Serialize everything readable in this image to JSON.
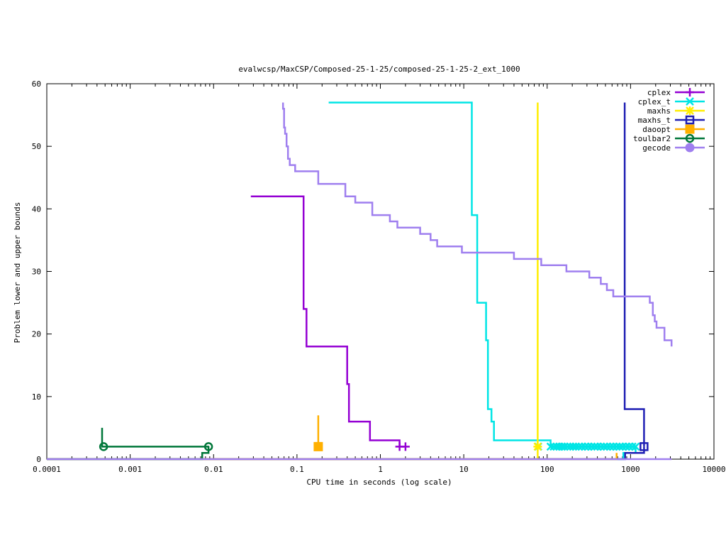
{
  "chart_data": {
    "type": "line",
    "title": "evalwcsp/MaxCSP/Composed-25-1-25/composed-25-1-25-2_ext_1000",
    "xlabel": "CPU time in seconds (log scale)",
    "ylabel": "Problem lower and upper bounds",
    "xscale": "log",
    "xlim": [
      0.0001,
      10000
    ],
    "ylim": [
      0,
      60
    ],
    "x_ticks": [
      0.0001,
      0.001,
      0.01,
      0.1,
      1,
      10,
      100,
      1000,
      10000
    ],
    "x_tick_labels": [
      "0.0001",
      "0.001",
      "0.01",
      "0.1",
      "1",
      "10",
      "100",
      "1000",
      "10000"
    ],
    "y_ticks": [
      0,
      10,
      20,
      30,
      40,
      50,
      60
    ],
    "y_tick_labels": [
      "0",
      "10",
      "20",
      "30",
      "40",
      "50",
      "60"
    ],
    "legend_position": "top-right",
    "series": [
      {
        "name": "cplex",
        "color": "#9400d3",
        "marker": "plus",
        "upper": [
          [
            0.028,
            42
          ],
          [
            0.12,
            42
          ],
          [
            0.12,
            24
          ],
          [
            0.13,
            24
          ],
          [
            0.13,
            18
          ],
          [
            0.4,
            18
          ],
          [
            0.4,
            12
          ],
          [
            0.42,
            12
          ],
          [
            0.42,
            6
          ],
          [
            0.75,
            6
          ],
          [
            0.75,
            3
          ],
          [
            1.7,
            3
          ],
          [
            1.7,
            2
          ],
          [
            2.0,
            2
          ]
        ],
        "lower": [
          [
            0.0001,
            0
          ],
          [
            2.0,
            0
          ]
        ],
        "end_markers": [
          [
            1.7,
            2
          ],
          [
            2.0,
            2
          ]
        ]
      },
      {
        "name": "cplex_t",
        "color": "#00e5e5",
        "marker": "cross",
        "upper": [
          [
            0.24,
            57
          ],
          [
            12.5,
            57
          ],
          [
            12.5,
            39
          ],
          [
            14.5,
            39
          ],
          [
            14.5,
            25
          ],
          [
            18.5,
            25
          ],
          [
            18.5,
            19
          ],
          [
            19.5,
            19
          ],
          [
            19.5,
            8
          ],
          [
            21.5,
            8
          ],
          [
            21.5,
            6
          ],
          [
            23,
            6
          ],
          [
            23,
            3
          ],
          [
            110,
            3
          ],
          [
            110,
            2
          ],
          [
            1150,
            2
          ]
        ],
        "lower": [
          [
            0.0001,
            0
          ],
          [
            820,
            0
          ],
          [
            820,
            1
          ],
          [
            1150,
            1
          ],
          [
            1150,
            2
          ]
        ],
        "end_markers": [
          [
            78,
            2
          ],
          [
            110,
            2
          ],
          [
            120,
            2
          ],
          [
            130,
            2
          ],
          [
            140,
            2
          ],
          [
            150,
            2
          ],
          [
            160,
            2
          ],
          [
            175,
            2
          ],
          [
            190,
            2
          ],
          [
            205,
            2
          ],
          [
            220,
            2
          ],
          [
            240,
            2
          ],
          [
            260,
            2
          ],
          [
            285,
            2
          ],
          [
            310,
            2
          ],
          [
            340,
            2
          ],
          [
            370,
            2
          ],
          [
            400,
            2
          ],
          [
            440,
            2
          ],
          [
            480,
            2
          ],
          [
            520,
            2
          ],
          [
            570,
            2
          ],
          [
            620,
            2
          ],
          [
            680,
            2
          ],
          [
            740,
            2
          ],
          [
            800,
            2
          ],
          [
            880,
            2
          ],
          [
            960,
            2
          ],
          [
            1050,
            2
          ],
          [
            1150,
            2
          ]
        ]
      },
      {
        "name": "maxhs",
        "color": "#ffee00",
        "marker": "star",
        "upper": [
          [
            77,
            57
          ],
          [
            77,
            2
          ]
        ],
        "lower": [
          [
            0.0001,
            0
          ],
          [
            77,
            0
          ],
          [
            77,
            2
          ]
        ],
        "end_markers": [
          [
            77,
            2
          ]
        ]
      },
      {
        "name": "maxhs_t",
        "color": "#1f1fb4",
        "marker": "square",
        "upper": [
          [
            850,
            57
          ],
          [
            850,
            8
          ],
          [
            1450,
            8
          ],
          [
            1450,
            2
          ]
        ],
        "lower": [
          [
            0.0001,
            0
          ],
          [
            860,
            0
          ],
          [
            860,
            1
          ],
          [
            1450,
            1
          ],
          [
            1450,
            2
          ]
        ],
        "end_markers": [
          [
            1450,
            2
          ]
        ]
      },
      {
        "name": "daoopt",
        "color": "#ffb000",
        "marker": "filled-square",
        "upper": [
          [
            0.18,
            7
          ],
          [
            0.18,
            2
          ]
        ],
        "lower": [
          [
            0.0001,
            0
          ],
          [
            680,
            0
          ],
          [
            680,
            1
          ]
        ],
        "end_markers": [
          [
            0.18,
            2
          ]
        ]
      },
      {
        "name": "toulbar2",
        "color": "#00773a",
        "marker": "circle",
        "upper": [
          [
            0.00046,
            5
          ],
          [
            0.00046,
            2
          ],
          [
            0.0087,
            2
          ]
        ],
        "lower": [
          [
            0.0001,
            0
          ],
          [
            0.0073,
            0
          ],
          [
            0.0073,
            1
          ],
          [
            0.0087,
            1
          ],
          [
            0.0087,
            2
          ]
        ],
        "end_markers": [
          [
            0.00048,
            2
          ],
          [
            0.0087,
            2
          ]
        ]
      },
      {
        "name": "gecode",
        "color": "#9f7fef",
        "marker": "filled-circle",
        "upper": [
          [
            0.068,
            57
          ],
          [
            0.068,
            56
          ],
          [
            0.07,
            56
          ],
          [
            0.07,
            53
          ],
          [
            0.072,
            53
          ],
          [
            0.072,
            52
          ],
          [
            0.075,
            52
          ],
          [
            0.075,
            50
          ],
          [
            0.078,
            50
          ],
          [
            0.078,
            48
          ],
          [
            0.082,
            48
          ],
          [
            0.082,
            47
          ],
          [
            0.095,
            47
          ],
          [
            0.095,
            46
          ],
          [
            0.18,
            46
          ],
          [
            0.18,
            44
          ],
          [
            0.38,
            44
          ],
          [
            0.38,
            42
          ],
          [
            0.5,
            42
          ],
          [
            0.5,
            41
          ],
          [
            0.8,
            41
          ],
          [
            0.8,
            39
          ],
          [
            1.3,
            39
          ],
          [
            1.3,
            38
          ],
          [
            1.6,
            38
          ],
          [
            1.6,
            37
          ],
          [
            3.0,
            37
          ],
          [
            3.0,
            36
          ],
          [
            4.0,
            36
          ],
          [
            4.0,
            35
          ],
          [
            4.8,
            35
          ],
          [
            4.8,
            34
          ],
          [
            9.5,
            34
          ],
          [
            9.5,
            33
          ],
          [
            40,
            33
          ],
          [
            40,
            32
          ],
          [
            85,
            32
          ],
          [
            85,
            31
          ],
          [
            170,
            31
          ],
          [
            170,
            30
          ],
          [
            320,
            30
          ],
          [
            320,
            29
          ],
          [
            440,
            29
          ],
          [
            440,
            28
          ],
          [
            520,
            28
          ],
          [
            520,
            27
          ],
          [
            620,
            27
          ],
          [
            620,
            26
          ],
          [
            1700,
            26
          ],
          [
            1700,
            25
          ],
          [
            1850,
            25
          ],
          [
            1850,
            23
          ],
          [
            1950,
            23
          ],
          [
            1950,
            22
          ],
          [
            2050,
            22
          ],
          [
            2050,
            21
          ],
          [
            2550,
            21
          ],
          [
            2550,
            19
          ],
          [
            3100,
            19
          ],
          [
            3100,
            18
          ]
        ],
        "lower": [
          [
            0.0001,
            0
          ],
          [
            3100,
            0
          ]
        ],
        "end_markers": []
      }
    ]
  }
}
